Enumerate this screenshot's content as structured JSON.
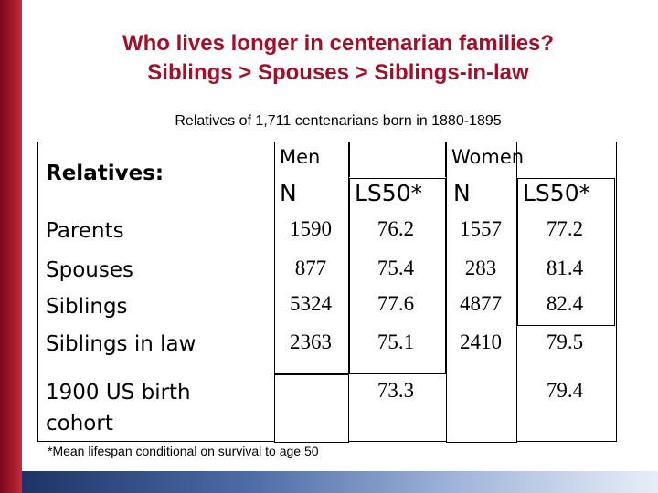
{
  "title": {
    "line1": "Who lives longer in centenarian families?",
    "line2": "Siblings > Spouses > Siblings-in-law"
  },
  "subtitle": "Relatives of 1,711 centenarians born in 1880-1895",
  "table": {
    "relatives_heading": "Relatives:",
    "group_headers": {
      "men": "Men",
      "women": "Women"
    },
    "column_headers": {
      "men_n": "N",
      "men_ls50": "LS50*",
      "women_n": "N",
      "women_ls50": "LS50*"
    },
    "rows": [
      {
        "label": "Parents",
        "men_n": "1590",
        "men_ls50": "76.2",
        "women_n": "1557",
        "women_ls50": "77.2"
      },
      {
        "label": "Spouses",
        "men_n": "877",
        "men_ls50": "75.4",
        "women_n": "283",
        "women_ls50": "81.4"
      },
      {
        "label": "Siblings",
        "men_n": "5324",
        "men_ls50": "77.6",
        "women_n": "4877",
        "women_ls50": "82.4"
      },
      {
        "label": "Siblings in law",
        "men_n": "2363",
        "men_ls50": "75.1",
        "women_n": "2410",
        "women_ls50": "79.5"
      },
      {
        "label_line1": "1900 US birth",
        "label_line2": "cohort",
        "men_n": "",
        "men_ls50": "73.3",
        "women_n": "",
        "women_ls50": "79.4"
      }
    ]
  },
  "footnote": "*Mean lifespan conditional on survival to age 50",
  "colors": {
    "title": "#a1102a",
    "left_bar": "#a5192b",
    "bottom_bar_start": "#1e3468"
  }
}
